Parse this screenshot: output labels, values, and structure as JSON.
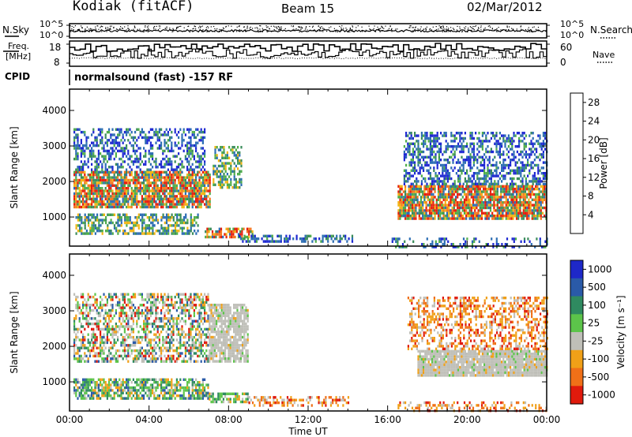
{
  "header": {
    "station": "Kodiak (fitACF)",
    "beam": "Beam 15",
    "date": "02/Mar/2012"
  },
  "summary_panels": {
    "nsky_label": "N.Sky",
    "nsearch_label": "N.Search",
    "noise_ticks": [
      "10^5",
      "10^0"
    ],
    "freq_label_line1": "Freq.",
    "freq_label_line2": "[MHz]",
    "freq_ticks": [
      "18",
      "8"
    ],
    "nave_label": "Nave",
    "nave_ticks": [
      "60",
      "0"
    ],
    "cpid_label": "CPID",
    "cpid_text": "normalsound (fast) -157 RF"
  },
  "chart_data": [
    {
      "type": "heatmap",
      "title": "",
      "xlabel": "Time UT",
      "ylabel": "Slant Range [km]",
      "x_ticks": [
        "00:00",
        "04:00",
        "08:00",
        "12:00",
        "16:00",
        "20:00",
        "00:00"
      ],
      "xlim_hours": [
        0,
        24
      ],
      "y_ticks": [
        1000,
        2000,
        3000,
        4000
      ],
      "ylim": [
        180,
        4600
      ],
      "colorbar": {
        "label": "Power [dB]",
        "ticks": [
          4,
          8,
          12,
          16,
          20,
          24,
          28
        ],
        "range": [
          0,
          30
        ],
        "colors": [
          "#1e28d2",
          "#2c6db3",
          "#3a8c5a",
          "#4fae4a",
          "#9fd43a",
          "#f2b515",
          "#f47820",
          "#e61e0c"
        ]
      },
      "regions": [
        {
          "t": [
            0.2,
            7.1
          ],
          "r": [
            1300,
            2300
          ],
          "level": "high",
          "density": 0.85
        },
        {
          "t": [
            0.2,
            6.8
          ],
          "r": [
            2300,
            3500
          ],
          "level": "low",
          "density": 0.45
        },
        {
          "t": [
            0.3,
            6.5
          ],
          "r": [
            500,
            1100
          ],
          "level": "mid",
          "density": 0.6
        },
        {
          "t": [
            6.8,
            9.2
          ],
          "r": [
            400,
            700
          ],
          "level": "high",
          "density": 0.6
        },
        {
          "t": [
            7.2,
            8.6
          ],
          "r": [
            1800,
            3000
          ],
          "level": "mid",
          "density": 0.55
        },
        {
          "t": [
            8.5,
            14.2
          ],
          "r": [
            300,
            500
          ],
          "level": "low",
          "density": 0.5
        },
        {
          "t": [
            16.5,
            24
          ],
          "r": [
            950,
            1900
          ],
          "level": "high",
          "density": 0.85
        },
        {
          "t": [
            16.8,
            24
          ],
          "r": [
            1900,
            3400
          ],
          "level": "low",
          "density": 0.5
        },
        {
          "t": [
            16.2,
            24
          ],
          "r": [
            180,
            420
          ],
          "level": "low",
          "density": 0.3
        }
      ]
    },
    {
      "type": "heatmap",
      "title": "",
      "xlabel": "Time UT",
      "ylabel": "Slant Range [km]",
      "x_ticks": [
        "00:00",
        "04:00",
        "08:00",
        "12:00",
        "16:00",
        "20:00",
        "00:00"
      ],
      "xlim_hours": [
        0,
        24
      ],
      "y_ticks": [
        1000,
        2000,
        3000,
        4000
      ],
      "ylim": [
        180,
        4600
      ],
      "colorbar": {
        "label": "Velocity [m s⁻¹]",
        "ticks": [
          "1000",
          "500",
          "100",
          "25",
          "-25",
          "-100",
          "-500",
          "-1000"
        ],
        "colors": [
          "#1e28c8",
          "#2a5aa8",
          "#2f8a60",
          "#5cc44a",
          "#bfbfb8",
          "#f0a018",
          "#f07018",
          "#e01a0c"
        ]
      },
      "regions": [
        {
          "t": [
            0.2,
            7.0
          ],
          "r": [
            1600,
            3500
          ],
          "level": "mixed",
          "density": 0.55
        },
        {
          "t": [
            0.2,
            7.0
          ],
          "r": [
            500,
            1100
          ],
          "level": "positive",
          "density": 0.7
        },
        {
          "t": [
            7.0,
            9.0
          ],
          "r": [
            1600,
            3200
          ],
          "level": "ground",
          "density": 0.8
        },
        {
          "t": [
            7.0,
            9.0
          ],
          "r": [
            400,
            700
          ],
          "level": "positive",
          "density": 0.6
        },
        {
          "t": [
            9.0,
            14.0
          ],
          "r": [
            300,
            600
          ],
          "level": "negative",
          "density": 0.5
        },
        {
          "t": [
            17.5,
            24
          ],
          "r": [
            1200,
            1900
          ],
          "level": "ground",
          "density": 0.95
        },
        {
          "t": [
            17.0,
            24
          ],
          "r": [
            1900,
            3400
          ],
          "level": "negative",
          "density": 0.45
        },
        {
          "t": [
            16.5,
            24
          ],
          "r": [
            200,
            450
          ],
          "level": "negative",
          "density": 0.35
        }
      ]
    }
  ]
}
